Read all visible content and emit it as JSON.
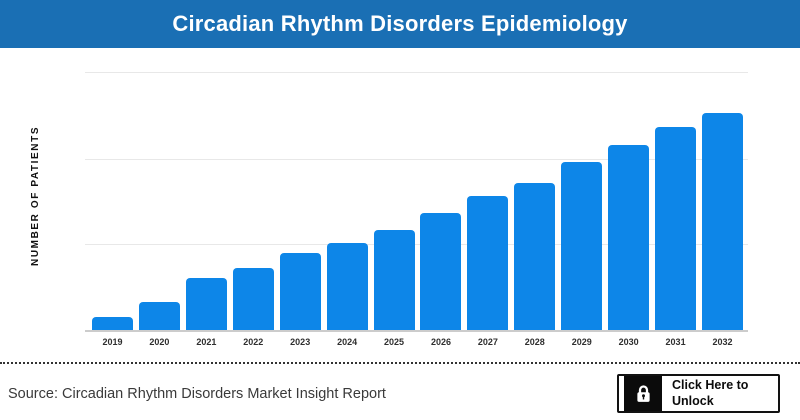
{
  "header": {
    "title": "Circadian Rhythm Disorders Epidemiology"
  },
  "chart_data": {
    "type": "bar",
    "title": "Circadian Rhythm Disorders Epidemiology",
    "xlabel": "",
    "ylabel": "NUMBER OF PATIENTS",
    "categories": [
      "2019",
      "2020",
      "2021",
      "2022",
      "2023",
      "2024",
      "2025",
      "2026",
      "2027",
      "2028",
      "2029",
      "2030",
      "2031",
      "2032"
    ],
    "values": [
      13,
      28,
      52,
      62,
      77,
      87,
      100,
      117,
      134,
      147,
      168,
      185,
      203,
      217
    ],
    "value_scale": "relative bar heights; y-axis has no numeric tick labels",
    "grid": "3 horizontal gridlines, no y-tick labels, no legend",
    "legend_position": "none",
    "bar_color": "#0d86e8"
  },
  "colors": {
    "banner_bg": "#1a6fb4",
    "banner_text": "#ffffff",
    "bar": "#0d86e8",
    "gridline": "#e8e8e8",
    "axis_line": "#cccccc"
  },
  "footer": {
    "source": "Source: Circadian Rhythm Disorders Market Insight Report",
    "unlock_button": {
      "label": "Click Here to Unlock",
      "icon": "lock"
    }
  }
}
